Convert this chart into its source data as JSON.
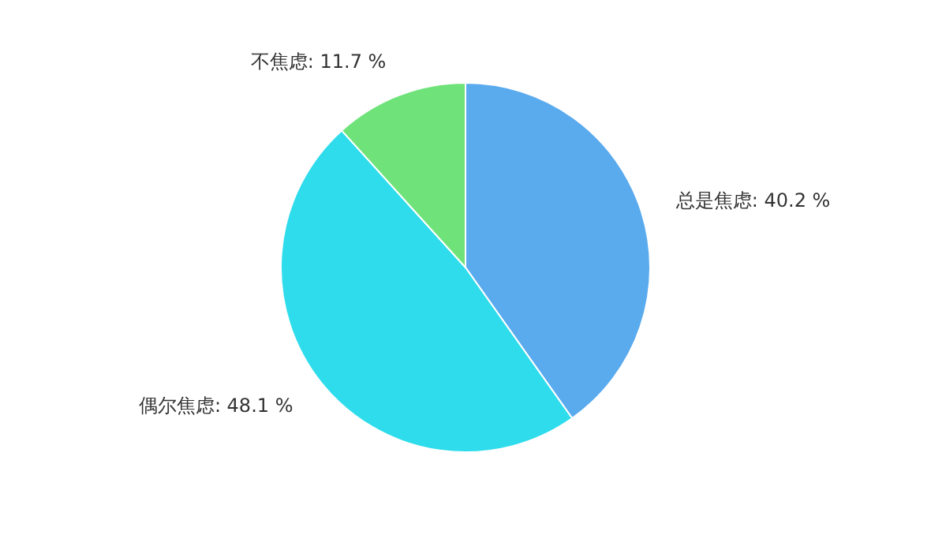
{
  "chart_data": {
    "type": "pie",
    "categories": [
      "总是焦虑",
      "偶尔焦虑",
      "不焦虑"
    ],
    "values": [
      40.2,
      48.1,
      11.7
    ],
    "value_labels": [
      "40.2 %",
      "48.1 %",
      "11.7 %"
    ],
    "colors": [
      "#5aaaee",
      "#2edcec",
      "#6fe37a"
    ]
  }
}
